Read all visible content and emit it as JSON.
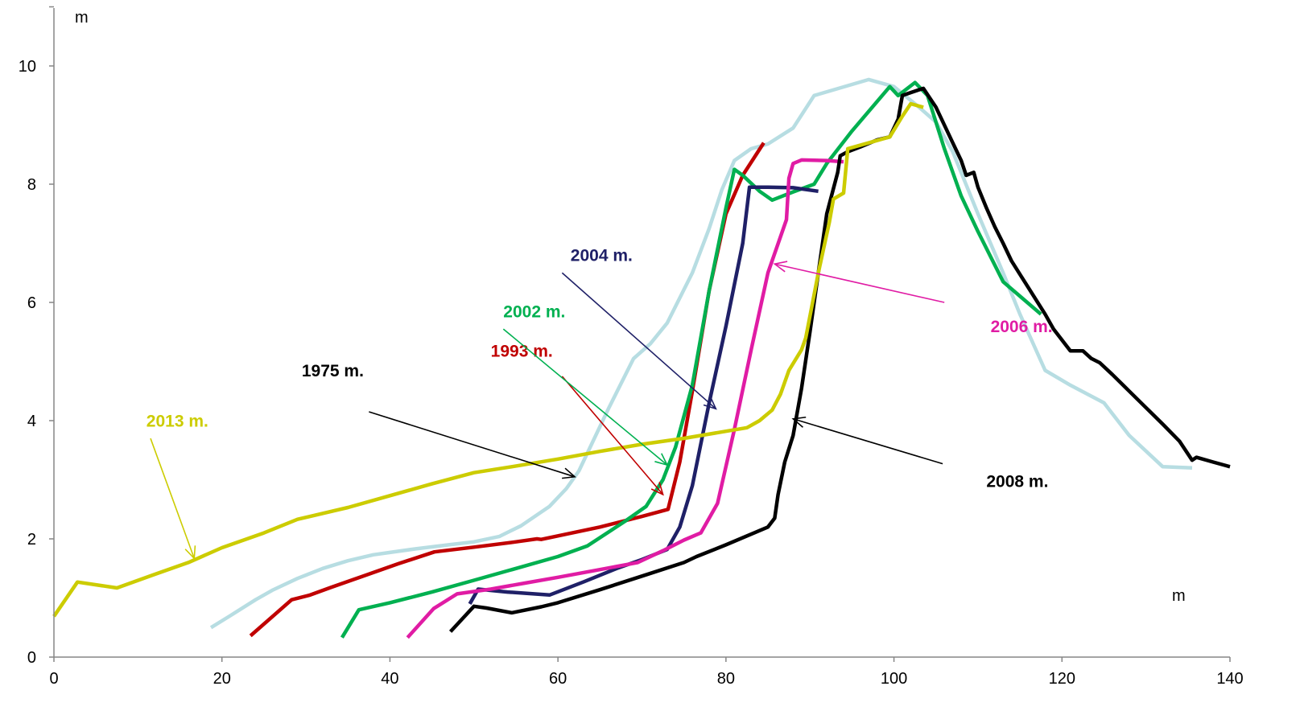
{
  "chart_data": {
    "type": "line",
    "xlabel": "m",
    "ylabel": "m",
    "xlim": [
      0,
      140
    ],
    "ylim": [
      0,
      11
    ],
    "x_ticks": [
      0,
      20,
      40,
      60,
      80,
      100,
      120,
      140
    ],
    "y_ticks": [
      0,
      2,
      4,
      6,
      8,
      10
    ],
    "grid": false,
    "legend": "none",
    "series": [
      {
        "name": "1975 m.",
        "color": "#b7dde2",
        "points": [
          [
            18.7,
            0.5
          ],
          [
            21,
            0.7
          ],
          [
            24,
            0.97
          ],
          [
            26,
            1.13
          ],
          [
            29,
            1.33
          ],
          [
            32,
            1.5
          ],
          [
            35,
            1.63
          ],
          [
            38,
            1.73
          ],
          [
            40,
            1.77
          ],
          [
            43,
            1.83
          ],
          [
            47,
            1.9
          ],
          [
            50,
            1.95
          ],
          [
            53,
            2.04
          ],
          [
            55.6,
            2.22
          ],
          [
            59,
            2.55
          ],
          [
            61,
            2.85
          ],
          [
            62.5,
            3.15
          ],
          [
            64,
            3.6
          ],
          [
            66,
            4.2
          ],
          [
            69,
            5.05
          ],
          [
            71,
            5.3
          ],
          [
            73,
            5.65
          ],
          [
            76,
            6.5
          ],
          [
            78,
            7.25
          ],
          [
            79.5,
            7.9
          ],
          [
            81,
            8.4
          ],
          [
            83,
            8.6
          ],
          [
            85,
            8.68
          ],
          [
            88,
            8.95
          ],
          [
            90.5,
            9.5
          ],
          [
            97,
            9.77
          ],
          [
            100,
            9.65
          ],
          [
            103,
            9.3
          ],
          [
            105,
            9.05
          ],
          [
            107,
            8.55
          ],
          [
            110,
            7.5
          ],
          [
            113,
            6.5
          ],
          [
            115,
            5.8
          ],
          [
            118,
            4.85
          ],
          [
            121,
            4.6
          ],
          [
            125,
            4.3
          ],
          [
            128,
            3.75
          ],
          [
            132,
            3.22
          ],
          [
            135.5,
            3.2
          ]
        ]
      },
      {
        "name": "1993 m.",
        "color": "#c00000",
        "points": [
          [
            23.4,
            0.36
          ],
          [
            28.3,
            0.97
          ],
          [
            30.5,
            1.05
          ],
          [
            33,
            1.18
          ],
          [
            37,
            1.38
          ],
          [
            41,
            1.58
          ],
          [
            45.3,
            1.78
          ],
          [
            50,
            1.86
          ],
          [
            55,
            1.95
          ],
          [
            57.5,
            2.0
          ],
          [
            58,
            1.99
          ],
          [
            60,
            2.05
          ],
          [
            65,
            2.2
          ],
          [
            70,
            2.38
          ],
          [
            73.1,
            2.5
          ],
          [
            74.5,
            3.3
          ],
          [
            76,
            4.5
          ],
          [
            78,
            6.2
          ],
          [
            80,
            7.5
          ],
          [
            82,
            8.15
          ],
          [
            84.5,
            8.7
          ]
        ]
      },
      {
        "name": "2002 m.",
        "color": "#00b050",
        "points": [
          [
            34.3,
            0.33
          ],
          [
            36.3,
            0.8
          ],
          [
            40,
            0.92
          ],
          [
            45,
            1.1
          ],
          [
            50,
            1.3
          ],
          [
            55,
            1.5
          ],
          [
            60,
            1.7
          ],
          [
            63.5,
            1.88
          ],
          [
            68,
            2.3
          ],
          [
            70.5,
            2.55
          ],
          [
            72.5,
            3.0
          ],
          [
            74,
            3.55
          ],
          [
            76,
            4.6
          ],
          [
            78,
            6.2
          ],
          [
            80,
            7.6
          ],
          [
            81,
            8.25
          ],
          [
            82,
            8.15
          ],
          [
            84,
            7.88
          ],
          [
            85.5,
            7.73
          ],
          [
            88,
            7.87
          ],
          [
            90.5,
            8.0
          ],
          [
            92,
            8.35
          ],
          [
            95,
            8.9
          ],
          [
            99.5,
            9.65
          ],
          [
            100.5,
            9.5
          ],
          [
            102.5,
            9.72
          ],
          [
            104,
            9.5
          ],
          [
            106,
            8.6
          ],
          [
            108,
            7.8
          ],
          [
            110,
            7.2
          ],
          [
            113,
            6.35
          ],
          [
            117.5,
            5.8
          ]
        ]
      },
      {
        "name": "2004 m.",
        "color": "#1f2067",
        "points": [
          [
            49.5,
            0.9
          ],
          [
            50.5,
            1.15
          ],
          [
            54,
            1.1
          ],
          [
            59,
            1.05
          ],
          [
            63,
            1.27
          ],
          [
            67,
            1.5
          ],
          [
            70,
            1.65
          ],
          [
            73,
            1.82
          ],
          [
            74.5,
            2.2
          ],
          [
            76,
            2.9
          ],
          [
            78,
            4.3
          ],
          [
            80,
            5.6
          ],
          [
            82,
            7.0
          ],
          [
            82.8,
            7.95
          ],
          [
            85,
            7.95
          ],
          [
            88,
            7.94
          ],
          [
            91,
            7.88
          ]
        ]
      },
      {
        "name": "2006 m.",
        "color": "#e01ca4",
        "points": [
          [
            42.1,
            0.33
          ],
          [
            45.2,
            0.82
          ],
          [
            48,
            1.07
          ],
          [
            52,
            1.15
          ],
          [
            56,
            1.25
          ],
          [
            60,
            1.35
          ],
          [
            65,
            1.48
          ],
          [
            69.5,
            1.6
          ],
          [
            72.5,
            1.8
          ],
          [
            75,
            1.98
          ],
          [
            77,
            2.1
          ],
          [
            79,
            2.6
          ],
          [
            81,
            3.85
          ],
          [
            83,
            5.2
          ],
          [
            85,
            6.5
          ],
          [
            87.2,
            7.4
          ],
          [
            87.5,
            8.1
          ],
          [
            88,
            8.35
          ],
          [
            89,
            8.41
          ],
          [
            92,
            8.4
          ],
          [
            94,
            8.38
          ]
        ]
      },
      {
        "name": "2008 m.",
        "color": "#000000",
        "points": [
          [
            47.2,
            0.43
          ],
          [
            50,
            0.86
          ],
          [
            51.5,
            0.83
          ],
          [
            54.5,
            0.75
          ],
          [
            58,
            0.85
          ],
          [
            60,
            0.92
          ],
          [
            65,
            1.14
          ],
          [
            70,
            1.37
          ],
          [
            75,
            1.6
          ],
          [
            76.5,
            1.7
          ],
          [
            80,
            1.9
          ],
          [
            85,
            2.2
          ],
          [
            85.8,
            2.35
          ],
          [
            86.2,
            2.75
          ],
          [
            87,
            3.3
          ],
          [
            88,
            3.75
          ],
          [
            89,
            4.55
          ],
          [
            90,
            5.5
          ],
          [
            91,
            6.5
          ],
          [
            92,
            7.5
          ],
          [
            93.3,
            8.2
          ],
          [
            93.6,
            8.48
          ],
          [
            94.5,
            8.55
          ],
          [
            96,
            8.63
          ],
          [
            98,
            8.75
          ],
          [
            99.5,
            8.8
          ],
          [
            100.5,
            9.1
          ],
          [
            101,
            9.5
          ],
          [
            102,
            9.55
          ],
          [
            103.5,
            9.62
          ],
          [
            105,
            9.3
          ],
          [
            107,
            8.7
          ],
          [
            108,
            8.4
          ],
          [
            108.6,
            8.15
          ],
          [
            109.5,
            8.2
          ],
          [
            110,
            7.95
          ],
          [
            111,
            7.6
          ],
          [
            112,
            7.28
          ],
          [
            113,
            7.0
          ],
          [
            114,
            6.7
          ],
          [
            116,
            6.25
          ],
          [
            118,
            5.8
          ],
          [
            119,
            5.55
          ],
          [
            121,
            5.18
          ],
          [
            122.5,
            5.18
          ],
          [
            123.5,
            5.05
          ],
          [
            124.5,
            4.98
          ],
          [
            126,
            4.78
          ],
          [
            128,
            4.5
          ],
          [
            130,
            4.22
          ],
          [
            132,
            3.94
          ],
          [
            134,
            3.65
          ],
          [
            135.5,
            3.33
          ],
          [
            136,
            3.38
          ],
          [
            138,
            3.3
          ],
          [
            140,
            3.22
          ]
        ]
      },
      {
        "name": "2013 m.",
        "color": "#cccc00",
        "points": [
          [
            0,
            0.69
          ],
          [
            2.8,
            1.27
          ],
          [
            7.5,
            1.17
          ],
          [
            12,
            1.4
          ],
          [
            16,
            1.6
          ],
          [
            20,
            1.85
          ],
          [
            25,
            2.1
          ],
          [
            29,
            2.33
          ],
          [
            35,
            2.53
          ],
          [
            40,
            2.73
          ],
          [
            45,
            2.93
          ],
          [
            50,
            3.12
          ],
          [
            54.5,
            3.22
          ],
          [
            60,
            3.35
          ],
          [
            65,
            3.48
          ],
          [
            70,
            3.6
          ],
          [
            75,
            3.7
          ],
          [
            80,
            3.82
          ],
          [
            82.5,
            3.88
          ],
          [
            84,
            4.0
          ],
          [
            85.5,
            4.18
          ],
          [
            86.5,
            4.45
          ],
          [
            87.5,
            4.85
          ],
          [
            89,
            5.2
          ],
          [
            89.5,
            5.4
          ],
          [
            91,
            6.5
          ],
          [
            92.3,
            7.35
          ],
          [
            92.8,
            7.75
          ],
          [
            94,
            7.85
          ],
          [
            94.5,
            8.6
          ],
          [
            97,
            8.7
          ],
          [
            99.5,
            8.8
          ],
          [
            101,
            9.15
          ],
          [
            102,
            9.36
          ],
          [
            103.5,
            9.3
          ]
        ]
      }
    ],
    "annotations": [
      {
        "text": "1975 m.",
        "color": "#000000",
        "label": [
          29.5,
          4.75
        ],
        "from": [
          37.5,
          4.15
        ],
        "to": [
          62,
          3.05
        ]
      },
      {
        "text": "1993 m.",
        "color": "#c00000",
        "label": [
          52,
          5.08
        ],
        "from": [
          60.5,
          4.75
        ],
        "to": [
          72.5,
          2.75
        ]
      },
      {
        "text": "2002 m.",
        "color": "#00b050",
        "label": [
          53.5,
          5.75
        ],
        "from": [
          53.5,
          5.55
        ],
        "to": [
          73,
          3.25
        ]
      },
      {
        "text": "2004 m.",
        "color": "#1f2067",
        "label": [
          61.5,
          6.7
        ],
        "from": [
          60.5,
          6.5
        ],
        "to": [
          78.8,
          4.2
        ]
      },
      {
        "text": "2006 m.",
        "color": "#e01ca4",
        "label": [
          111.5,
          5.5
        ],
        "from": [
          106,
          6.0
        ],
        "to": [
          85.8,
          6.65
        ]
      },
      {
        "text": "2008 m.",
        "color": "#000000",
        "label": [
          111,
          2.88
        ],
        "from": [
          105.8,
          3.27
        ],
        "to": [
          88,
          4.03
        ]
      },
      {
        "text": "2013 m.",
        "color": "#cccc00",
        "label": [
          11,
          3.9
        ],
        "from": [
          11.5,
          3.7
        ],
        "to": [
          16.7,
          1.67
        ]
      }
    ]
  }
}
